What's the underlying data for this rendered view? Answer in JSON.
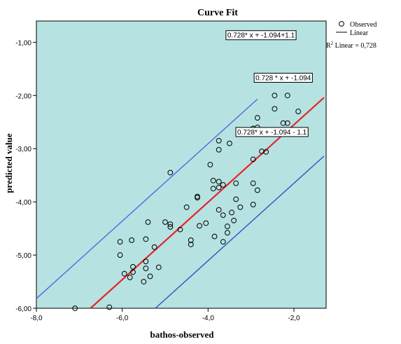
{
  "chart_data": {
    "type": "scatter",
    "title": "Curve Fit",
    "xlabel": "bathos-observed",
    "ylabel": "predicted value",
    "xlim": [
      -8.0,
      -1.25
    ],
    "ylim": [
      -6.0,
      -0.6
    ],
    "xticks": [
      -8.0,
      -6.0,
      -4.0,
      -2.0
    ],
    "xtick_labels": [
      "-8,0",
      "-6,0",
      "-4,0",
      "-2,0"
    ],
    "yticks": [
      -6.0,
      -5.0,
      -4.0,
      -3.0,
      -2.0,
      -1.0
    ],
    "ytick_labels": [
      "-6,00",
      "-5,00",
      "-4,00",
      "-3,00",
      "-2,00",
      "-1,00"
    ],
    "grid": false,
    "background_color": "#b6e2e2",
    "legend": {
      "placement": "top-right",
      "observed_label": "Observed",
      "linear_label": "Linear",
      "r2_label": "R",
      "r2_sup": "2",
      "r2_text": " Linear = 0,728"
    },
    "lines": [
      {
        "name": "upper",
        "slope": 0.728,
        "intercept": 0.006,
        "x_from": -8.0,
        "x_to": -2.85,
        "color": "#5a64e0",
        "width": 1.4
      },
      {
        "name": "fit",
        "slope": 0.728,
        "intercept": -1.094,
        "x_from": -6.75,
        "x_to": -1.3,
        "color": "#e32626",
        "width": 2.2
      },
      {
        "name": "lower",
        "slope": 0.728,
        "intercept": -2.194,
        "x_from": -5.3,
        "x_to": -1.3,
        "color": "#3c4cc0",
        "width": 1.4
      }
    ],
    "annotations": [
      {
        "text": "0.728* x + -1.094+1.1",
        "x": -1.95,
        "y": -0.86
      },
      {
        "text": "0.728 * x + -1.094",
        "x": -1.57,
        "y": -1.66
      },
      {
        "text": "0.728* x + -1.094 - 1.1",
        "x": -1.67,
        "y": -2.68
      }
    ],
    "points": [
      {
        "x": -7.1,
        "y": -6.0
      },
      {
        "x": -6.3,
        "y": -5.98
      },
      {
        "x": -5.5,
        "y": -5.5
      },
      {
        "x": -6.05,
        "y": -5.0
      },
      {
        "x": -6.05,
        "y": -4.75
      },
      {
        "x": -5.78,
        "y": -4.72
      },
      {
        "x": -5.75,
        "y": -5.22
      },
      {
        "x": -5.75,
        "y": -5.32
      },
      {
        "x": -5.82,
        "y": -5.42
      },
      {
        "x": -5.95,
        "y": -5.35
      },
      {
        "x": -5.35,
        "y": -5.4
      },
      {
        "x": -5.15,
        "y": -5.23
      },
      {
        "x": -5.45,
        "y": -5.25
      },
      {
        "x": -5.45,
        "y": -5.12
      },
      {
        "x": -5.25,
        "y": -4.85
      },
      {
        "x": -5.45,
        "y": -4.7
      },
      {
        "x": -5.4,
        "y": -4.38
      },
      {
        "x": -5.0,
        "y": -4.38
      },
      {
        "x": -4.88,
        "y": -4.42
      },
      {
        "x": -4.88,
        "y": -4.47
      },
      {
        "x": -4.65,
        "y": -4.52
      },
      {
        "x": -4.4,
        "y": -4.72
      },
      {
        "x": -4.4,
        "y": -4.8
      },
      {
        "x": -4.2,
        "y": -4.45
      },
      {
        "x": -4.05,
        "y": -4.4
      },
      {
        "x": -4.5,
        "y": -4.1
      },
      {
        "x": -4.25,
        "y": -3.92
      },
      {
        "x": -4.25,
        "y": -3.9
      },
      {
        "x": -3.95,
        "y": -3.3
      },
      {
        "x": -4.88,
        "y": -3.45
      },
      {
        "x": -3.88,
        "y": -3.6
      },
      {
        "x": -3.75,
        "y": -3.62
      },
      {
        "x": -3.75,
        "y": -3.73
      },
      {
        "x": -3.65,
        "y": -3.68
      },
      {
        "x": -3.88,
        "y": -3.75
      },
      {
        "x": -3.75,
        "y": -4.15
      },
      {
        "x": -3.65,
        "y": -4.25
      },
      {
        "x": -3.85,
        "y": -4.65
      },
      {
        "x": -3.55,
        "y": -4.46
      },
      {
        "x": -3.55,
        "y": -4.58
      },
      {
        "x": -3.65,
        "y": -4.75
      },
      {
        "x": -3.4,
        "y": -4.35
      },
      {
        "x": -3.45,
        "y": -4.2
      },
      {
        "x": -3.35,
        "y": -3.95
      },
      {
        "x": -3.35,
        "y": -3.65
      },
      {
        "x": -3.25,
        "y": -4.1
      },
      {
        "x": -3.75,
        "y": -2.85
      },
      {
        "x": -3.75,
        "y": -3.02
      },
      {
        "x": -3.5,
        "y": -2.9
      },
      {
        "x": -3.2,
        "y": -2.7
      },
      {
        "x": -2.95,
        "y": -2.62
      },
      {
        "x": -2.85,
        "y": -2.6
      },
      {
        "x": -2.85,
        "y": -2.42
      },
      {
        "x": -2.95,
        "y": -3.2
      },
      {
        "x": -2.75,
        "y": -3.05
      },
      {
        "x": -2.65,
        "y": -3.06
      },
      {
        "x": -2.95,
        "y": -3.65
      },
      {
        "x": -2.85,
        "y": -3.78
      },
      {
        "x": -2.95,
        "y": -4.05
      },
      {
        "x": -2.45,
        "y": -2.25
      },
      {
        "x": -2.45,
        "y": -2.0
      },
      {
        "x": -2.25,
        "y": -2.52
      },
      {
        "x": -2.15,
        "y": -2.52
      },
      {
        "x": -2.15,
        "y": -2.0
      },
      {
        "x": -1.9,
        "y": -2.3
      }
    ]
  }
}
